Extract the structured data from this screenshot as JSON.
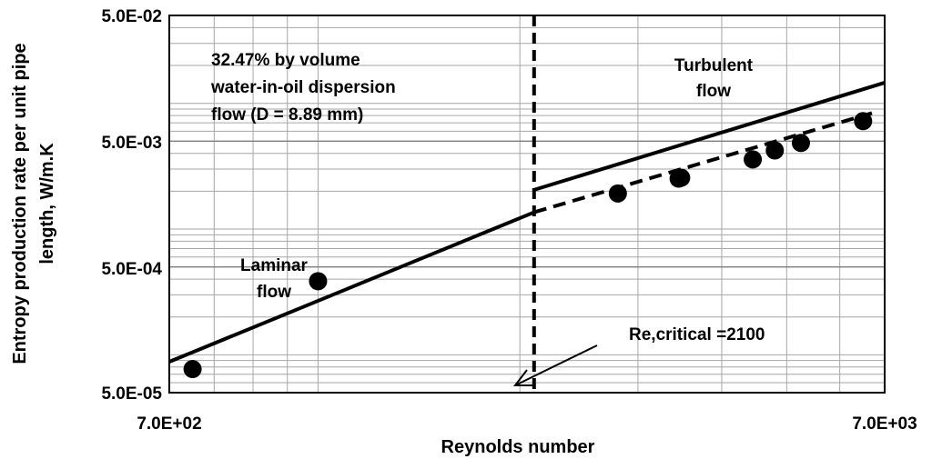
{
  "chart_data": {
    "type": "scatter",
    "title": "",
    "xlabel": "Reynolds number",
    "ylabel": [
      "Entropy production rate per unit pipe",
      "length,  W/m.K"
    ],
    "xscale": "log",
    "yscale": "log",
    "xlim": [
      600,
      7000
    ],
    "ylim": [
      5e-05,
      0.05
    ],
    "x_ticks": [
      700,
      7000
    ],
    "x_tick_labels": [
      "7.0E+02",
      "7.0E+03"
    ],
    "y_ticks": [
      5e-05,
      0.0005,
      0.005,
      0.05
    ],
    "y_tick_labels": [
      "5.0E-05",
      "5.0E-04",
      "5.0E-03",
      "5.0E-02"
    ],
    "grid": true,
    "legend": "none",
    "points": [
      {
        "x": 650,
        "y": 7.7e-05
      },
      {
        "x": 1000,
        "y": 0.000385
      },
      {
        "x": 2800,
        "y": 0.00192
      },
      {
        "x": 3450,
        "y": 0.00252
      },
      {
        "x": 3480,
        "y": 0.00256
      },
      {
        "x": 4450,
        "y": 0.00358
      },
      {
        "x": 4800,
        "y": 0.00422
      },
      {
        "x": 5250,
        "y": 0.00484
      },
      {
        "x": 6500,
        "y": 0.00722
      }
    ],
    "lines": [
      {
        "style": "solid",
        "x": [
          600,
          2100
        ],
        "y": [
          8.8e-05,
          0.00136
        ]
      },
      {
        "style": "solid",
        "x": [
          2100,
          7000
        ],
        "y": [
          0.00205,
          0.0146
        ]
      },
      {
        "style": "dashed",
        "x": [
          2100,
          6700
        ],
        "y": [
          0.00136,
          0.00836
        ]
      }
    ],
    "critical_line": {
      "x": 2100
    },
    "annotations": [
      {
        "id": "dispersion",
        "lines": [
          "32.47% by volume",
          "water-in-oil dispersion",
          "flow (D = 8.89 mm)"
        ]
      },
      {
        "id": "turbulent",
        "lines": [
          "Turbulent",
          "flow"
        ]
      },
      {
        "id": "laminar",
        "lines": [
          "Laminar",
          "flow"
        ]
      },
      {
        "id": "critical",
        "lines": [
          "Re,critical =2100"
        ]
      }
    ],
    "colors": {
      "series": "#000000",
      "grid": "#a6a6a6",
      "background": "#ffffff"
    }
  }
}
